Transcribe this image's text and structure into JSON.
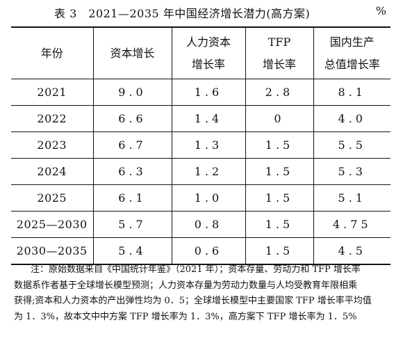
{
  "caption": {
    "title": "表 3　2021—2035 年中国经济增长潜力(高方案)",
    "unit": "%"
  },
  "table": {
    "headers": [
      [
        "年份"
      ],
      [
        "资本增长"
      ],
      [
        "人力资本",
        "增长率"
      ],
      [
        "TFP",
        "增长率"
      ],
      [
        "国内生产",
        "总值增长率"
      ]
    ],
    "rows": [
      [
        "2021",
        "9.0",
        "1.6",
        "2.8",
        "8.1"
      ],
      [
        "2022",
        "6.6",
        "1.4",
        "0",
        "4.0"
      ],
      [
        "2023",
        "6.7",
        "1.3",
        "1.5",
        "5.5"
      ],
      [
        "2024",
        "6.3",
        "1.2",
        "1.5",
        "5.3"
      ],
      [
        "2025",
        "6.1",
        "1.0",
        "1.5",
        "5.1"
      ],
      [
        "2025—2030",
        "5.7",
        "0.8",
        "1.5",
        "4.75"
      ],
      [
        "2030—2035",
        "5.4",
        "0.6",
        "1.5",
        "4.5"
      ]
    ]
  },
  "note": [
    "注：原始数据来自《中国统计年鉴》（2021 年）；资本存量、劳动力和 TFP 增长率",
    "数据系作者基于全球增长模型预测；人力资本存量为劳动力数量与人均受教育年限相乘",
    "获得;资本和人力资本的产出弹性均为 0．5；全球增长模型中主要国家 TFP 增长率平均值",
    "为 1．3%，故本文中中方案 TFP 增长率为 1．3%，高方案下 TFP 增长率为 1．5%"
  ]
}
